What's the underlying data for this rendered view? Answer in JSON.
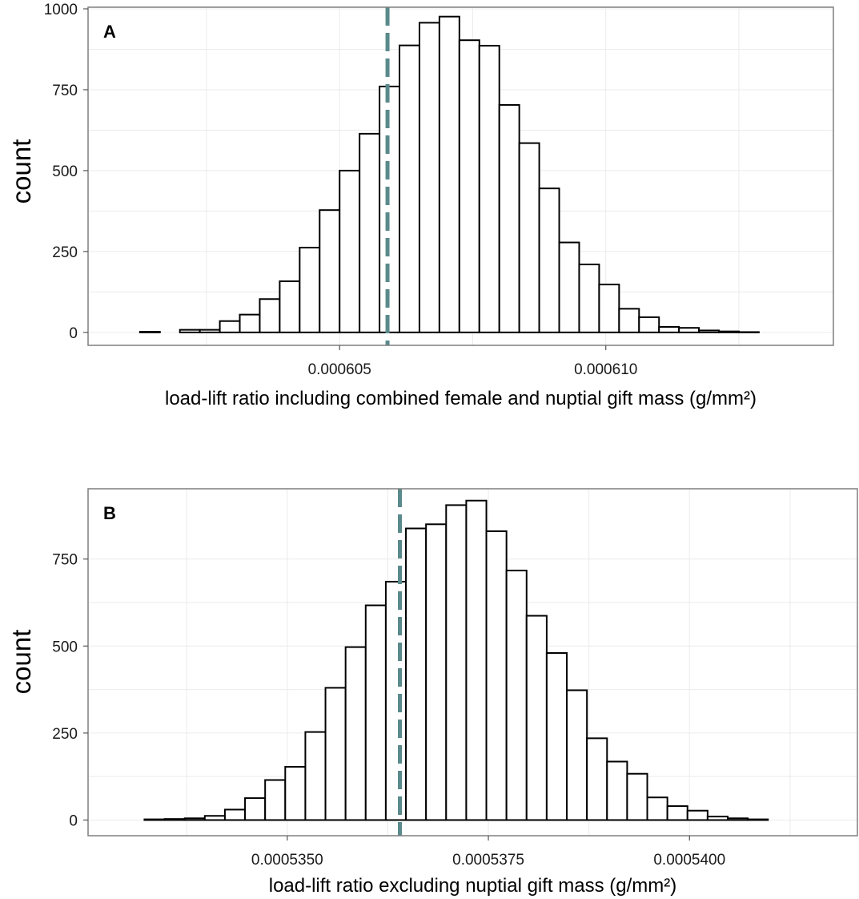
{
  "chart_data": [
    {
      "type": "histogram",
      "panel_label": "A",
      "xlabel": "load-lift ratio including combined female and nuptial gift mass (g/mm²)",
      "ylabel": "count",
      "xlim": [
        0.000600275,
        0.000614275
      ],
      "ylim": [
        -40,
        1005
      ],
      "x_ticks": [
        0.000605,
        0.00061
      ],
      "x_tick_labels": [
        "0.000605",
        "0.000610"
      ],
      "y_ticks": [
        0,
        250,
        500,
        750,
        1000
      ],
      "y_tick_labels": [
        "0",
        "250",
        "500",
        "750",
        "1000"
      ],
      "bin_start": 0.000600875,
      "bin_width": 3.75e-07,
      "counts": [
        0,
        2,
        0,
        8,
        8,
        35,
        55,
        103,
        158,
        262,
        378,
        500,
        614,
        760,
        887,
        957,
        976,
        903,
        886,
        703,
        585,
        445,
        278,
        210,
        148,
        73,
        47,
        17,
        14,
        6,
        3,
        1,
        0
      ],
      "vline": {
        "x": 0.0006059,
        "color": "#5a8a8c",
        "style": "dashed"
      },
      "grid": true
    },
    {
      "type": "histogram",
      "panel_label": "B",
      "xlabel": "load-lift ratio excluding nuptial gift mass (g/mm²)",
      "ylabel": "count",
      "xlim": [
        0.000532524,
        0.000542087
      ],
      "ylim": [
        -45,
        952
      ],
      "x_ticks": [
        0.000535,
        0.0005375,
        0.00054
      ],
      "x_tick_labels": [
        "0.0005350",
        "0.0005375",
        "0.0005400"
      ],
      "y_ticks": [
        0,
        250,
        500,
        750
      ],
      "y_tick_labels": [
        "0",
        "250",
        "500",
        "750"
      ],
      "bin_start": 0.000532975,
      "bin_width": 2.5e-07,
      "counts": [
        0,
        2,
        3,
        5,
        12,
        30,
        63,
        115,
        153,
        253,
        380,
        497,
        617,
        685,
        838,
        850,
        905,
        918,
        830,
        717,
        587,
        480,
        373,
        235,
        168,
        133,
        65,
        40,
        27,
        10,
        5,
        2,
        0
      ],
      "vline": {
        "x": 0.0005364,
        "color": "#5a8a8c",
        "style": "dashed"
      },
      "grid": true
    }
  ]
}
